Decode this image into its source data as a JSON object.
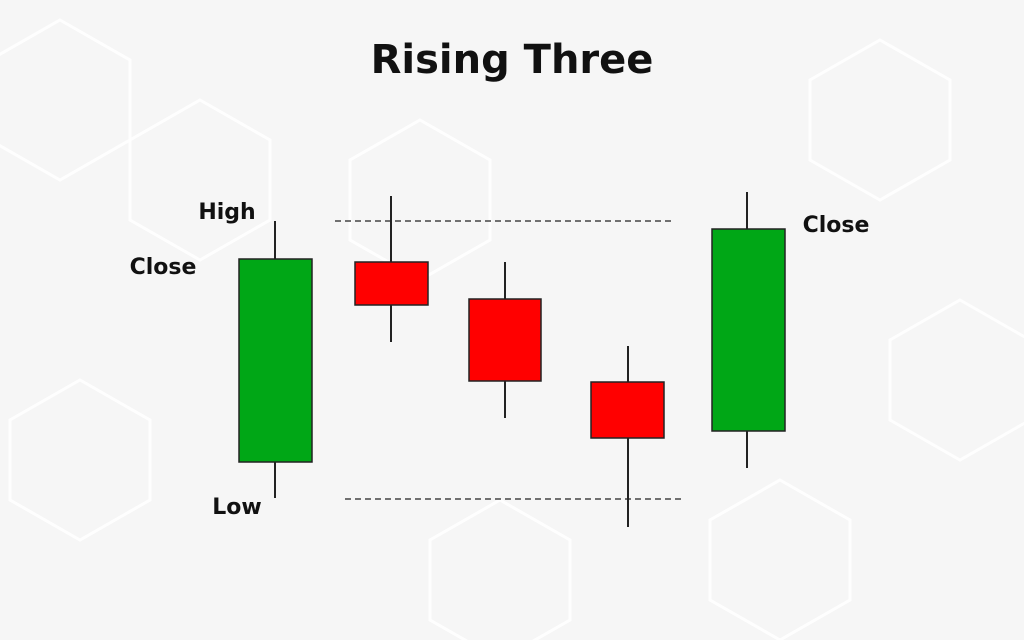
{
  "title": "Rising Three",
  "labels": {
    "high": "High",
    "close_left": "Close",
    "low": "Low",
    "close_right": "Close"
  }
}
